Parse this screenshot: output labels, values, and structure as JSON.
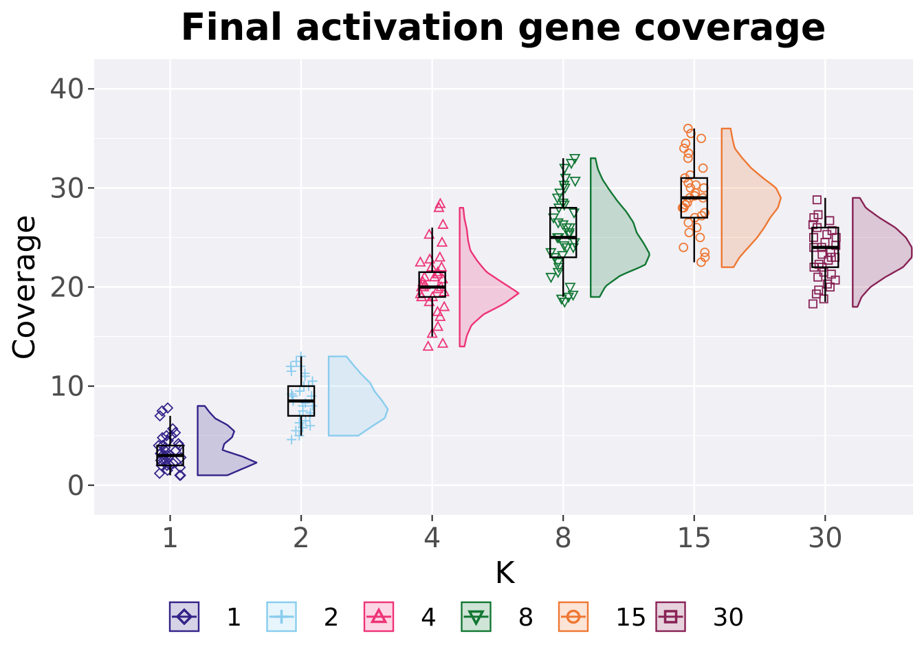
{
  "chart_data": {
    "type": "raincloud",
    "title": "Final activation gene coverage",
    "xlabel": "K",
    "ylabel": "Coverage",
    "ylim": [
      -3,
      43
    ],
    "yticks": [
      0,
      10,
      20,
      30,
      40
    ],
    "categories": [
      "1",
      "2",
      "4",
      "8",
      "15",
      "30"
    ],
    "grid": true,
    "legend_position": "bottom",
    "series": [
      {
        "name": "1",
        "color": "#332288",
        "marker": "diamond",
        "box": {
          "min": 1,
          "q1": 2,
          "median": 3,
          "q3": 4,
          "max": 7
        },
        "violin": {
          "ymin": 1,
          "ymax": 8,
          "density": [
            0.5,
            0.75,
            1.0,
            0.75,
            0.42,
            0.45,
            0.58,
            0.62,
            0.5,
            0.3,
            0.2,
            0.12
          ]
        },
        "points": [
          1,
          1,
          1.2,
          1.5,
          1.8,
          2,
          2,
          2,
          2.2,
          2.5,
          2.5,
          2.8,
          3,
          3,
          3,
          3,
          3.2,
          3.5,
          3.5,
          3.8,
          4,
          4,
          4,
          4.2,
          4.5,
          4.8,
          5,
          5,
          5.3,
          5.7,
          7,
          7.5,
          7.8
        ]
      },
      {
        "name": "2",
        "color": "#88ccee",
        "marker": "cross",
        "box": {
          "min": 5,
          "q1": 7,
          "median": 8.5,
          "q3": 10,
          "max": 13
        },
        "violin": {
          "ymin": 5,
          "ymax": 13,
          "density": [
            0.5,
            0.72,
            0.95,
            1.0,
            0.9,
            0.78,
            0.7,
            0.55,
            0.42,
            0.3
          ]
        },
        "points": [
          4.6,
          5,
          5.5,
          5.8,
          6,
          6.3,
          6.5,
          7,
          7,
          7.3,
          7.5,
          8,
          8,
          8.3,
          8.5,
          8.5,
          9,
          9,
          9.2,
          9.5,
          10,
          10,
          10.5,
          11,
          11.3,
          11.5,
          12,
          12,
          12.5,
          13
        ]
      },
      {
        "name": "4",
        "color": "#ee3377",
        "marker": "triangle-up",
        "box": {
          "min": 15,
          "q1": 19,
          "median": 20,
          "q3": 21.5,
          "max": 26
        },
        "violin": {
          "ymin": 14,
          "ymax": 28,
          "density": [
            0.08,
            0.12,
            0.2,
            0.4,
            0.75,
            1.0,
            0.72,
            0.45,
            0.3,
            0.18,
            0.14,
            0.12,
            0.08,
            0.06
          ]
        },
        "points": [
          14,
          14.3,
          15.3,
          16,
          17,
          17.5,
          18,
          18.5,
          19,
          19,
          19.3,
          19.5,
          19.8,
          20,
          20,
          20,
          20.2,
          20.5,
          20.8,
          21,
          21,
          21.3,
          21.5,
          22,
          22,
          22.5,
          22.8,
          23,
          24.5,
          25.3,
          26.3,
          28,
          28.4
        ]
      },
      {
        "name": "8",
        "color": "#117733",
        "marker": "triangle-down",
        "box": {
          "min": 19,
          "q1": 23,
          "median": 25,
          "q3": 28,
          "max": 33
        },
        "violin": {
          "ymin": 19,
          "ymax": 33,
          "density": [
            0.15,
            0.25,
            0.5,
            0.92,
            1.0,
            0.9,
            0.78,
            0.72,
            0.6,
            0.45,
            0.32,
            0.2,
            0.12,
            0.08
          ]
        },
        "points": [
          18.5,
          18.8,
          19,
          19.2,
          20,
          21,
          21.5,
          22,
          22.5,
          23,
          23.2,
          23.5,
          24,
          24,
          24.2,
          24.5,
          25,
          25,
          25.3,
          25.5,
          26,
          26,
          26.3,
          26.5,
          27,
          27.5,
          28,
          28.3,
          28.5,
          29,
          29.5,
          30,
          30.3,
          30.7,
          31,
          32,
          32.5,
          33
        ]
      },
      {
        "name": "15",
        "color": "#ee7733",
        "marker": "circle",
        "box": {
          "min": 22.5,
          "q1": 27,
          "median": 29,
          "q3": 31,
          "max": 36
        },
        "violin": {
          "ymin": 22,
          "ymax": 36,
          "density": [
            0.2,
            0.3,
            0.45,
            0.6,
            0.72,
            0.82,
            0.95,
            1.0,
            0.92,
            0.7,
            0.5,
            0.35,
            0.22,
            0.18,
            0.15
          ]
        },
        "points": [
          22.5,
          23,
          23.5,
          24,
          25,
          25.5,
          26,
          26.5,
          27,
          27.2,
          27.5,
          28,
          28,
          28.3,
          28.5,
          29,
          29,
          29.2,
          29.5,
          30,
          30,
          30.3,
          30.5,
          31,
          31.3,
          32,
          33,
          33.5,
          34,
          34.5,
          35,
          35.5,
          36
        ]
      },
      {
        "name": "30",
        "color": "#882255",
        "marker": "square",
        "box": {
          "min": 18.5,
          "q1": 22,
          "median": 24,
          "q3": 26,
          "max": 29
        },
        "violin": {
          "ymin": 18,
          "ymax": 29,
          "density": [
            0.08,
            0.15,
            0.3,
            0.55,
            0.85,
            1.0,
            1.0,
            0.9,
            0.72,
            0.45,
            0.22,
            0.12
          ]
        },
        "points": [
          18.3,
          18.8,
          19.3,
          19.7,
          20,
          20.3,
          20.7,
          21,
          21.3,
          21.5,
          22,
          22,
          22.3,
          22.7,
          23,
          23,
          23.3,
          23.5,
          24,
          24,
          24.2,
          24.5,
          25,
          25,
          25.3,
          25.7,
          26,
          26.3,
          26.7,
          27,
          27.3,
          28.8
        ]
      }
    ]
  }
}
